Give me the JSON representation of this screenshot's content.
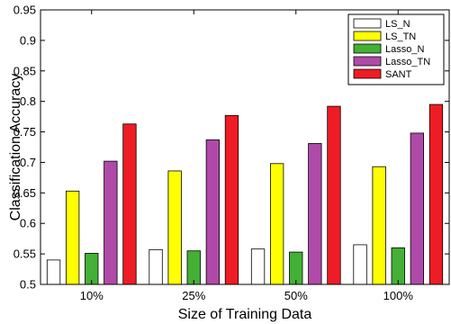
{
  "chart_data": {
    "type": "bar",
    "categories": [
      "10%",
      "25%",
      "50%",
      "100%"
    ],
    "series": [
      {
        "name": "LS_N",
        "color": "#ffffff",
        "values": [
          0.54,
          0.557,
          0.558,
          0.565
        ]
      },
      {
        "name": "LS_TN",
        "color": "#ffff00",
        "values": [
          0.653,
          0.686,
          0.698,
          0.693
        ]
      },
      {
        "name": "Lasso_N",
        "color": "#44b035",
        "values": [
          0.551,
          0.555,
          0.553,
          0.56
        ]
      },
      {
        "name": "Lasso_TN",
        "color": "#b04aa8",
        "values": [
          0.702,
          0.737,
          0.731,
          0.748
        ]
      },
      {
        "name": "SANT",
        "color": "#ee1c24",
        "values": [
          0.763,
          0.777,
          0.792,
          0.795
        ]
      }
    ],
    "xlabel": "Size of Training Data",
    "ylabel": "Classification Accuracy",
    "ylim": [
      0.5,
      0.95
    ],
    "yticks": [
      "0.5",
      "0.55",
      "0.6",
      "0.65",
      "0.7",
      "0.75",
      "0.8",
      "0.85",
      "0.9",
      "0.95"
    ],
    "grid": false,
    "legend_position": "top-right"
  }
}
